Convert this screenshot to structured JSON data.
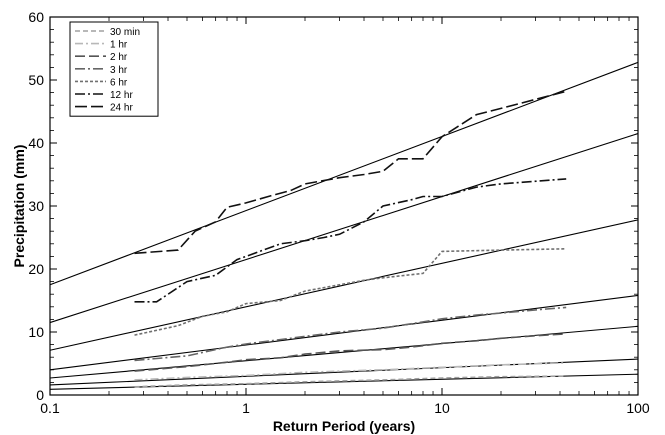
{
  "chart_data": {
    "type": "line",
    "x_scale": "log",
    "xlim": [
      0.1,
      100
    ],
    "ylim": [
      0,
      60
    ],
    "xlabel": "Return Period (years)",
    "ylabel": "Precipitation (mm)",
    "x_ticks": [
      0.1,
      1,
      10,
      100
    ],
    "x_tick_labels": [
      "0.1",
      "1",
      "10",
      "100"
    ],
    "y_ticks": [
      0,
      10,
      20,
      30,
      40,
      50,
      60
    ],
    "y_tick_labels": [
      "0",
      "10",
      "20",
      "30",
      "40",
      "50",
      "60"
    ],
    "legend_position": "top-left",
    "series": [
      {
        "name": "30 min",
        "color": "#a0a0a0",
        "dash": "5,3",
        "x": [
          0.27,
          0.5,
          1,
          2,
          5,
          10,
          20,
          43
        ],
        "y": [
          1.3,
          1.6,
          1.8,
          2.1,
          2.4,
          2.7,
          2.9,
          3.0
        ],
        "fit": [
          0.9,
          3.3
        ]
      },
      {
        "name": "1 hr",
        "color": "#b8b8b8",
        "dash": "8,3,2,3",
        "x": [
          0.27,
          0.5,
          1,
          2,
          5,
          10,
          20,
          43
        ],
        "y": [
          2.4,
          2.8,
          3.1,
          3.6,
          4.0,
          4.4,
          4.8,
          5.1
        ],
        "fit": [
          1.6,
          5.7
        ]
      },
      {
        "name": "2 hr",
        "color": "#555555",
        "dash": "10,4",
        "x": [
          0.27,
          0.5,
          0.8,
          1,
          1.5,
          2,
          3,
          5,
          7,
          10,
          15,
          20,
          30,
          43
        ],
        "y": [
          3.8,
          4.5,
          5.2,
          5.6,
          5.9,
          6.5,
          7.0,
          7.2,
          7.6,
          8.2,
          8.6,
          9.0,
          9.4,
          9.7
        ],
        "fit": [
          2.7,
          10.9
        ]
      },
      {
        "name": "3 hr",
        "color": "#666666",
        "dash": "10,3,2,3",
        "x": [
          0.27,
          0.5,
          0.8,
          1,
          2,
          3,
          5,
          8,
          10,
          15,
          20,
          30,
          43
        ],
        "y": [
          5.5,
          6.2,
          7.6,
          8.1,
          9.3,
          10.0,
          10.6,
          11.6,
          12.1,
          12.7,
          13.0,
          13.5,
          13.9
        ],
        "fit": [
          4.0,
          15.8
        ]
      },
      {
        "name": "6 hr",
        "color": "#707070",
        "dash": "3,2",
        "x": [
          0.27,
          0.45,
          0.6,
          0.8,
          1,
          1.5,
          2,
          3,
          4,
          5,
          8,
          10,
          20,
          43
        ],
        "y": [
          9.5,
          11.0,
          12.5,
          13.2,
          14.5,
          15.0,
          16.5,
          17.5,
          18.2,
          18.6,
          19.3,
          22.8,
          23.0,
          23.2
        ],
        "fit": [
          7.1,
          27.8
        ]
      },
      {
        "name": "12 hr",
        "color": "#111111",
        "dash": "10,3,2,3",
        "x": [
          0.27,
          0.35,
          0.5,
          0.7,
          0.9,
          1,
          1.5,
          2,
          2.5,
          3,
          4,
          5,
          7,
          8,
          10,
          15,
          20,
          43
        ],
        "y": [
          14.8,
          14.8,
          18.0,
          19.0,
          21.5,
          22.0,
          24.0,
          24.5,
          25.0,
          25.5,
          27.5,
          30.0,
          31.0,
          31.5,
          31.5,
          33.0,
          33.5,
          34.3
        ],
        "fit": [
          11.5,
          41.5
        ]
      },
      {
        "name": "24 hr",
        "color": "#111111",
        "dash": "12,4",
        "x": [
          0.27,
          0.45,
          0.55,
          0.7,
          0.8,
          1,
          1.3,
          1.7,
          2,
          3,
          4,
          5,
          6,
          8,
          10,
          15,
          20,
          43
        ],
        "y": [
          22.5,
          23.0,
          26.0,
          27.5,
          29.8,
          30.5,
          31.5,
          32.5,
          33.5,
          34.5,
          35.0,
          35.5,
          37.5,
          37.5,
          41.0,
          44.5,
          45.5,
          48.2
        ],
        "fit": [
          17.5,
          52.8
        ]
      }
    ]
  }
}
